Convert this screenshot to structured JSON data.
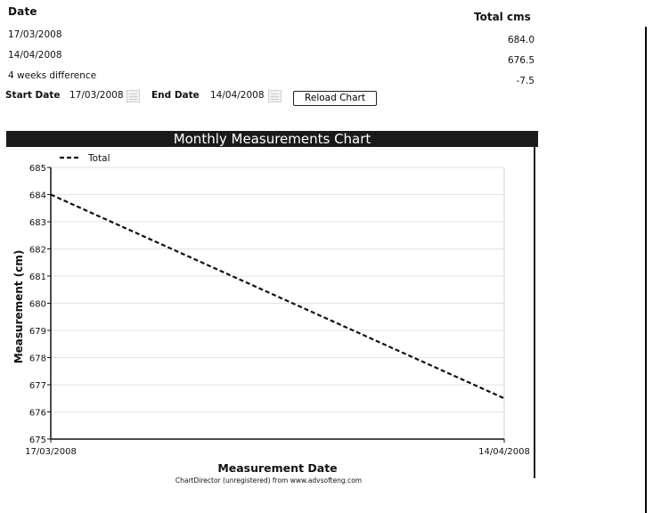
{
  "summary": {
    "date_header": "Date",
    "total_header": "Total cms",
    "rows": [
      {
        "label": "17/03/2008",
        "value": "684.0"
      },
      {
        "label": "14/04/2008",
        "value": "676.5"
      },
      {
        "label": "4 weeks difference",
        "value": "-7.5"
      }
    ]
  },
  "controls": {
    "start_label": "Start Date",
    "start_value": "17/03/2008",
    "end_label": "End Date",
    "end_value": "14/04/2008",
    "reload_label": "Reload Chart"
  },
  "chart_data": {
    "type": "line",
    "title": "Monthly Measurements Chart",
    "xlabel": "Measurement Date",
    "ylabel": "Measurement (cm)",
    "x": [
      "17/03/2008",
      "14/04/2008"
    ],
    "series": [
      {
        "name": "Total",
        "values": [
          684.0,
          676.5
        ],
        "style": "dashed"
      }
    ],
    "ylim": [
      675,
      685
    ],
    "yticks": [
      675,
      676,
      677,
      678,
      679,
      680,
      681,
      682,
      683,
      684,
      685
    ],
    "legend_position": "top-left",
    "grid": true,
    "footer": "ChartDirector (unregistered) from www.advsofteng.com",
    "colors": {
      "title_bar": "#1a1a1a",
      "line": "#111111",
      "grid": "#e2e2e2"
    }
  }
}
